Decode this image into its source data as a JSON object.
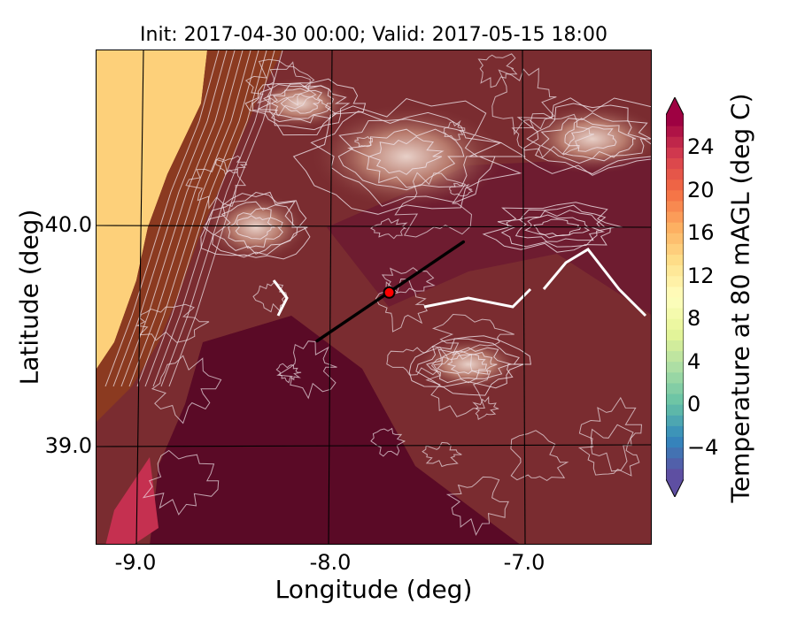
{
  "title": "Init: 2017-04-30 00:00; Valid: 2017-05-15 18:00",
  "x_axis": {
    "label": "Longitude (deg)",
    "ticks": [
      {
        "value": -9.0,
        "label": "-9.0"
      },
      {
        "value": -8.0,
        "label": "-8.0"
      },
      {
        "value": -7.0,
        "label": "-7.0"
      }
    ]
  },
  "y_axis": {
    "label": "Latitude (deg)",
    "ticks": [
      {
        "value": 40.0,
        "label": "40.0"
      },
      {
        "value": 39.0,
        "label": "39.0"
      }
    ]
  },
  "colorbar": {
    "label": "Temperature at 80 mAGL (deg C)",
    "ticks": [
      {
        "value": -4,
        "label": "−4"
      },
      {
        "value": 0,
        "label": "0"
      },
      {
        "value": 4,
        "label": "4"
      },
      {
        "value": 8,
        "label": "8"
      },
      {
        "value": 12,
        "label": "12"
      },
      {
        "value": 16,
        "label": "16"
      },
      {
        "value": 20,
        "label": "20"
      },
      {
        "value": 24,
        "label": "24"
      }
    ],
    "range": [
      -7,
      27
    ],
    "colors": [
      "#5e4fa2",
      "#3288bd",
      "#66c2a5",
      "#abdda4",
      "#e6f598",
      "#ffffbf",
      "#fee08b",
      "#fdae61",
      "#f46d43",
      "#d53e4f",
      "#9e0142"
    ]
  },
  "map": {
    "extent": {
      "lon": [
        -9.25,
        -6.4
      ],
      "lat": [
        38.55,
        40.8
      ]
    },
    "cross_section_line": {
      "start": {
        "lon": -8.12,
        "lat": 39.48
      },
      "end": {
        "lon": -7.37,
        "lat": 39.93
      }
    },
    "site_marker": {
      "lon": -7.75,
      "lat": 39.7
    },
    "palette": {
      "sea": "#fdd07a",
      "coast": "#8b3a20",
      "inland": "#7a2c30",
      "lowland": "#5a0a26",
      "highland": "#a86a60",
      "contour": "#f0e4ea",
      "marker": "#ff0000",
      "line": "#000000"
    }
  }
}
